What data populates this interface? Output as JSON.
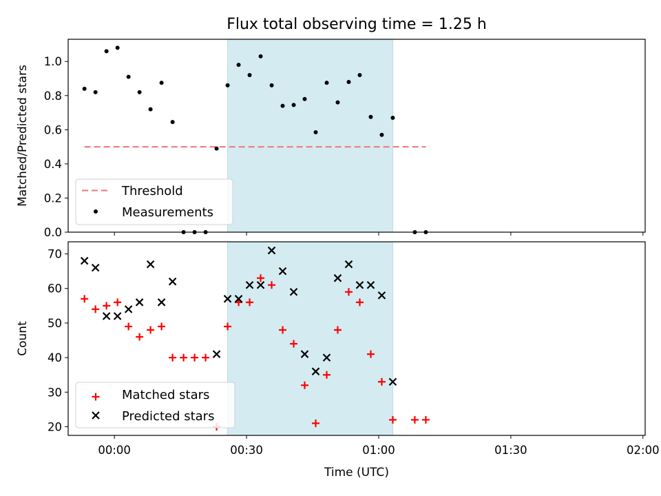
{
  "chart_data": {
    "type": "scatter",
    "title": "Flux total observing time = 1.25 h",
    "xlabel": "Time (UTC)",
    "x_tick_labels": [
      "00:00",
      "00:30",
      "01:00",
      "01:30",
      "02:00"
    ],
    "x_tick_minutes": [
      0,
      30,
      60,
      90,
      120
    ],
    "xlim_minutes": [
      -10.5,
      120.5
    ],
    "x_minutes": [
      -6.8,
      -4.3,
      -1.8,
      0.7,
      3.2,
      5.7,
      8.2,
      10.7,
      13.2,
      15.7,
      18.2,
      20.7,
      23.2,
      25.7,
      28.2,
      30.7,
      33.2,
      35.7,
      38.2,
      40.7,
      43.2,
      45.7,
      48.2,
      50.7,
      53.2,
      55.7,
      58.2,
      60.7,
      63.2,
      65.7,
      68.2,
      70.7
    ],
    "shaded_span_minutes": [
      25.7,
      63.2
    ],
    "shade_color": "#add8e6",
    "panels": [
      {
        "ylabel": "Matched/Predicted stars",
        "ylim": [
          0,
          1.13
        ],
        "y_ticks": [
          "0.0",
          "0.2",
          "0.4",
          "0.6",
          "0.8",
          "1.0"
        ],
        "y_tick_values": [
          0,
          0.2,
          0.4,
          0.6,
          0.8,
          1.0
        ],
        "threshold": {
          "name": "Threshold",
          "value": 0.5,
          "color": "#f08080",
          "style": "dashed"
        },
        "series": [
          {
            "name": "Measurements",
            "marker": "dot",
            "color": "#000000",
            "values": [
              0.84,
              0.82,
              1.06,
              1.08,
              0.91,
              0.82,
              0.72,
              0.875,
              0.645,
              0,
              0,
              0,
              0.49,
              0.86,
              0.98,
              0.92,
              1.03,
              0.86,
              0.74,
              0.745,
              0.78,
              0.585,
              0.875,
              0.76,
              0.88,
              0.92,
              0.675,
              0.57,
              0.67,
              null,
              0,
              0
            ]
          }
        ],
        "legend_position": "lower-left"
      },
      {
        "ylabel": "Count",
        "ylim": [
          17.5,
          73.5
        ],
        "y_ticks": [
          "20",
          "30",
          "40",
          "50",
          "60",
          "70"
        ],
        "y_tick_values": [
          20,
          30,
          40,
          50,
          60,
          70
        ],
        "series": [
          {
            "name": "Matched stars",
            "marker": "plus",
            "color": "#ff0000",
            "values": [
              57,
              54,
              55,
              56,
              49,
              46,
              48,
              49,
              40,
              40,
              40,
              40,
              20,
              49,
              56,
              56,
              63,
              61,
              48,
              44,
              32,
              21,
              35,
              48,
              59,
              56,
              41,
              33,
              22,
              null,
              22,
              22
            ]
          },
          {
            "name": "Predicted stars",
            "marker": "x",
            "color": "#000000",
            "values": [
              68,
              66,
              52,
              52,
              54,
              56,
              67,
              56,
              62,
              null,
              null,
              null,
              41,
              57,
              57,
              61,
              61,
              71,
              65,
              59,
              41,
              36,
              40,
              63,
              67,
              61,
              61,
              58,
              33,
              null,
              null,
              null
            ]
          }
        ],
        "legend_position": "lower-left"
      }
    ]
  }
}
